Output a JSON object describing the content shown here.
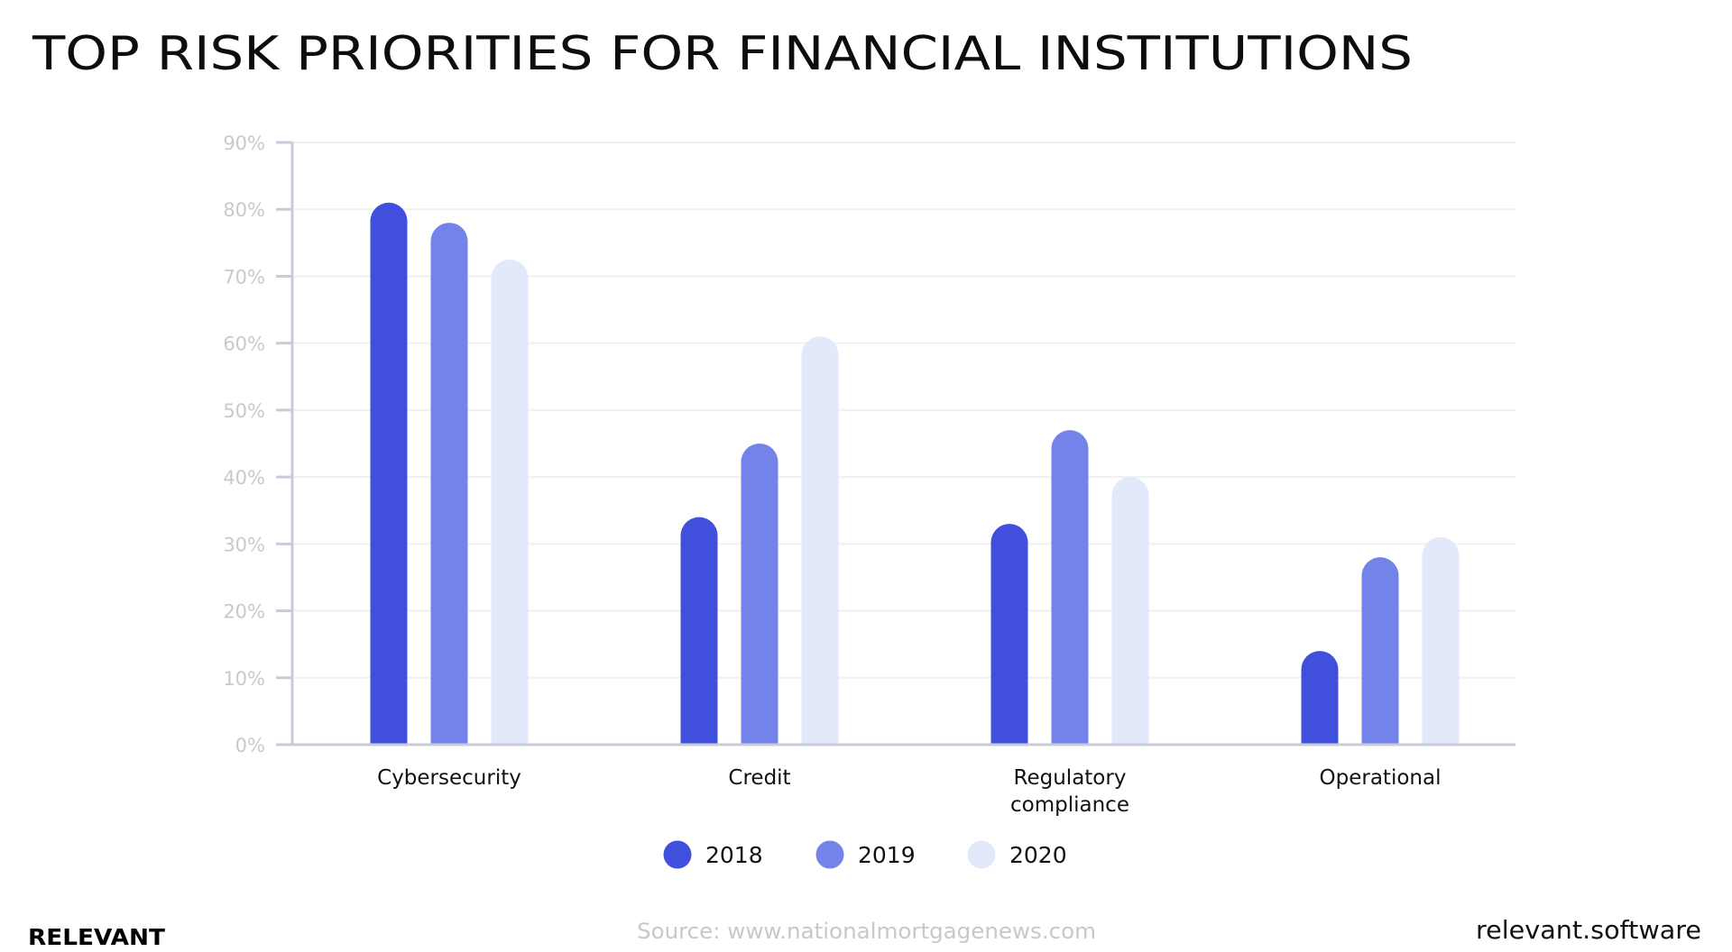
{
  "chart_data": {
    "type": "bar",
    "title": "TOP RISK PRIORITIES FOR FINANCIAL INSTITUTIONS",
    "xlabel": "",
    "ylabel": "",
    "categories": [
      "Cybersecurity",
      "Credit",
      "Regulatory compliance",
      "Operational"
    ],
    "category_lines": [
      [
        "Cybersecurity"
      ],
      [
        "Credit"
      ],
      [
        "Regulatory",
        "compliance"
      ],
      [
        "Operational"
      ]
    ],
    "series": [
      {
        "name": "2018",
        "color": "#4050DC",
        "values": [
          81,
          34,
          33,
          14
        ]
      },
      {
        "name": "2019",
        "color": "#7483EA",
        "values": [
          78,
          45,
          47,
          28
        ]
      },
      {
        "name": "2020",
        "color": "#E1E9FB",
        "values": [
          72.5,
          61,
          40,
          31
        ]
      }
    ],
    "ylim": [
      0,
      90
    ],
    "yticks": [
      0,
      10,
      20,
      30,
      40,
      50,
      60,
      70,
      80,
      90
    ],
    "ytick_labels": [
      "0%",
      "10%",
      "20%",
      "30%",
      "40%",
      "50%",
      "60%",
      "70%",
      "80%",
      "90%"
    ],
    "grid": true,
    "legend_position": "bottom-center",
    "legend": [
      "2018",
      "2019",
      "2020"
    ]
  },
  "header": {
    "title": "TOP RISK PRIORITIES FOR FINANCIAL INSTITUTIONS"
  },
  "footer": {
    "brand": "RELEVANT",
    "source": "Source: www.nationalmortgagenews.com",
    "site": "relevant.software"
  },
  "colors": {
    "series_2018": "#4050DC",
    "series_2019": "#7483EA",
    "series_2020": "#E1E9FB",
    "gridline": "#EEF0F4",
    "axis": "#C9CBD8",
    "tick_label": "#C9C9CC",
    "text": "#111111"
  }
}
